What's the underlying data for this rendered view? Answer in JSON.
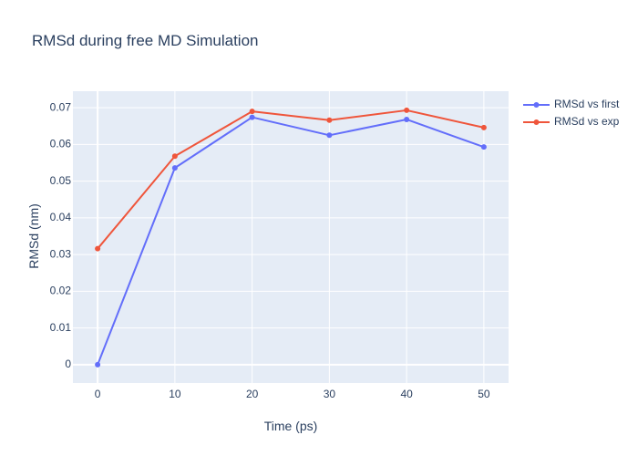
{
  "chart_data": {
    "type": "line",
    "title": "RMSd during free MD Simulation",
    "xlabel": "Time (ps)",
    "ylabel": "RMSd (nm)",
    "x": [
      0,
      10,
      20,
      30,
      40,
      50
    ],
    "x_ticks": [
      0,
      10,
      20,
      30,
      40,
      50
    ],
    "y_ticks": [
      0,
      0.01,
      0.02,
      0.03,
      0.04,
      0.05,
      0.06,
      0.07
    ],
    "xlim": [
      -3.2,
      53.2
    ],
    "ylim": [
      -0.005,
      0.0745
    ],
    "grid": true,
    "plot_background": "#e5ecf6",
    "legend_position": "top-right",
    "series": [
      {
        "name": "RMSd vs first",
        "color": "#636efa",
        "values": [
          0.0,
          0.0536,
          0.0674,
          0.0625,
          0.0668,
          0.0593
        ]
      },
      {
        "name": "RMSd vs exp",
        "color": "#ef553b",
        "values": [
          0.0316,
          0.0568,
          0.069,
          0.0666,
          0.0693,
          0.0646
        ]
      }
    ]
  }
}
